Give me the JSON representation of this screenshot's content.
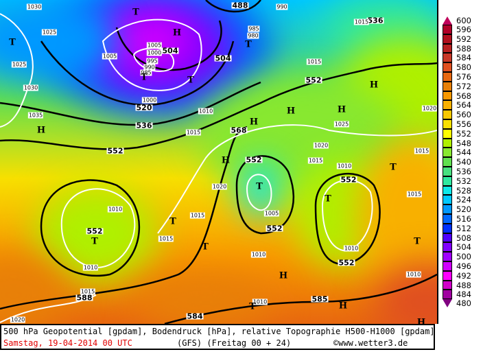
{
  "footer": {
    "title": "500 hPa Geopotential [gpdam], Bodendruck [hPa], relative Topographie H500-H1000 [gpdam]",
    "date": "Samstag, 19-04-2014  00 UTC",
    "model": "(GFS)  (Freitag 00 + 24)",
    "copyright": "©www.wetter3.de"
  },
  "legend": {
    "unit": "gpdam",
    "levels": [
      600,
      596,
      592,
      588,
      584,
      580,
      576,
      572,
      568,
      564,
      560,
      556,
      552,
      548,
      544,
      540,
      536,
      532,
      528,
      524,
      520,
      516,
      512,
      508,
      504,
      500,
      496,
      492,
      488,
      484,
      480
    ],
    "colors": [
      "#c0005a",
      "#b00028",
      "#b0101e",
      "#b82020",
      "#c83828",
      "#e05020",
      "#e86810",
      "#e88008",
      "#f89800",
      "#f8b000",
      "#f8c800",
      "#f8e000",
      "#ffff00",
      "#b0f000",
      "#88e830",
      "#60e050",
      "#48e080",
      "#30e8a0",
      "#10e8e8",
      "#00c8ff",
      "#0098ff",
      "#0068ff",
      "#0030ff",
      "#5000ff",
      "#8000ff",
      "#a000ff",
      "#d000ff",
      "#ff00ff",
      "#d000c8",
      "#a000a0",
      "#800080"
    ]
  },
  "map": {
    "geopotential_labels": [
      "488",
      "504",
      "504",
      "520",
      "536",
      "552",
      "552",
      "568",
      "552",
      "552",
      "552",
      "552",
      "552",
      "588",
      "584",
      "585",
      "536"
    ],
    "pressure_labels": [
      "1030",
      "1025",
      "1025",
      "1030",
      "1035",
      "1005",
      "1005",
      "1000",
      "995",
      "990",
      "985",
      "1000",
      "1010",
      "1015",
      "1015",
      "1025",
      "1020",
      "1015",
      "1020",
      "1010",
      "1015",
      "1015",
      "1010",
      "1015",
      "1005",
      "1010",
      "1010",
      "1020",
      "1015",
      "1015",
      "1010",
      "1010",
      "1020",
      "990",
      "985",
      "980",
      "1015",
      "1010"
    ],
    "markers": [
      "H",
      "T",
      "T",
      "T",
      "T",
      "H",
      "H",
      "H",
      "H",
      "H",
      "T",
      "T",
      "T",
      "T",
      "T",
      "H",
      "T",
      "T",
      "H",
      "H",
      "T",
      "H",
      "T"
    ]
  }
}
